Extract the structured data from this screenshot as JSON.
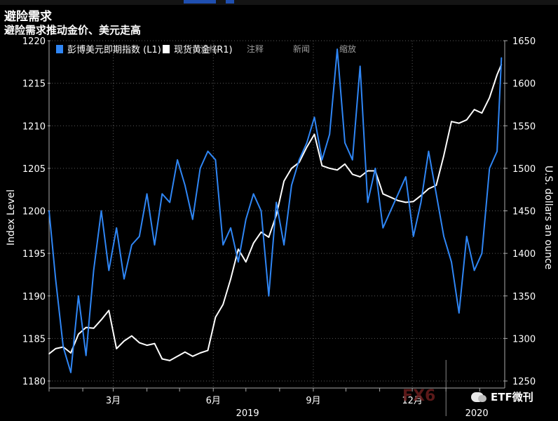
{
  "header": {
    "title": "避险需求",
    "subtitle": "避险需求推动金价、美元走高"
  },
  "toolbar": {
    "items": [
      "退格",
      "注释",
      "新闻",
      "缩放"
    ]
  },
  "watermark": {
    "fx_text": "FX6",
    "brand_text": "ETF微刊"
  },
  "colors": {
    "gold_series": "#ffffff",
    "dollar_series": "#2f86f5",
    "grid": "#5a5a5a",
    "background": "#000000"
  },
  "chart_data": {
    "type": "line",
    "title": "避险需求推动金价、美元走高",
    "x_tick_labels": [
      "3月",
      "6月",
      "9月",
      "12月"
    ],
    "x_year_labels": [
      "2019",
      "2020"
    ],
    "y_left": {
      "label": "Index Level",
      "range": [
        1180,
        1220
      ],
      "ticks": [
        1180,
        1185,
        1190,
        1195,
        1200,
        1205,
        1210,
        1215,
        1220
      ]
    },
    "y_right": {
      "label": "U.S. dollars an ounce",
      "range": [
        1250,
        1650
      ],
      "ticks": [
        1250,
        1300,
        1350,
        1400,
        1450,
        1500,
        1550,
        1600,
        1650
      ]
    },
    "legend": {
      "position": "top-left"
    },
    "series": [
      {
        "name": "现货黄金 (R1)",
        "axis": "right",
        "color": "#ffffff",
        "x": [
          "2019-01-01",
          "2019-01-07",
          "2019-01-14",
          "2019-01-21",
          "2019-01-28",
          "2019-02-04",
          "2019-02-11",
          "2019-02-18",
          "2019-02-25",
          "2019-03-04",
          "2019-03-11",
          "2019-03-18",
          "2019-03-25",
          "2019-04-01",
          "2019-04-08",
          "2019-04-15",
          "2019-04-22",
          "2019-04-29",
          "2019-05-06",
          "2019-05-13",
          "2019-05-20",
          "2019-05-27",
          "2019-06-03",
          "2019-06-10",
          "2019-06-17",
          "2019-06-24",
          "2019-07-01",
          "2019-07-08",
          "2019-07-15",
          "2019-07-22",
          "2019-07-29",
          "2019-08-05",
          "2019-08-12",
          "2019-08-19",
          "2019-08-26",
          "2019-09-02",
          "2019-09-09",
          "2019-09-16",
          "2019-09-23",
          "2019-09-30",
          "2019-10-07",
          "2019-10-14",
          "2019-10-21",
          "2019-10-28",
          "2019-11-04",
          "2019-11-11",
          "2019-11-18",
          "2019-11-25",
          "2019-12-02",
          "2019-12-09",
          "2019-12-16",
          "2019-12-23",
          "2019-12-30",
          "2020-01-06",
          "2020-01-13",
          "2020-01-20",
          "2020-01-27",
          "2020-02-03",
          "2020-02-10",
          "2020-02-17",
          "2020-02-21"
        ],
        "values": [
          1282,
          1288,
          1290,
          1283,
          1305,
          1313,
          1312,
          1322,
          1333,
          1288,
          1297,
          1303,
          1295,
          1292,
          1294,
          1276,
          1274,
          1279,
          1284,
          1279,
          1283,
          1286,
          1325,
          1340,
          1370,
          1405,
          1390,
          1412,
          1425,
          1419,
          1445,
          1485,
          1500,
          1507,
          1525,
          1540,
          1503,
          1500,
          1498,
          1505,
          1493,
          1490,
          1497,
          1497,
          1470,
          1466,
          1462,
          1460,
          1461,
          1468,
          1476,
          1480,
          1515,
          1555,
          1553,
          1557,
          1569,
          1565,
          1583,
          1610,
          1622
        ]
      },
      {
        "name": "彭博美元即期指数 (L1)",
        "axis": "left",
        "color": "#2f86f5",
        "x": [
          "2019-01-01",
          "2019-01-07",
          "2019-01-14",
          "2019-01-21",
          "2019-01-28",
          "2019-02-04",
          "2019-02-11",
          "2019-02-18",
          "2019-02-25",
          "2019-03-04",
          "2019-03-11",
          "2019-03-18",
          "2019-03-25",
          "2019-04-01",
          "2019-04-08",
          "2019-04-15",
          "2019-04-22",
          "2019-04-29",
          "2019-05-06",
          "2019-05-13",
          "2019-05-20",
          "2019-05-27",
          "2019-06-03",
          "2019-06-10",
          "2019-06-17",
          "2019-06-24",
          "2019-07-01",
          "2019-07-08",
          "2019-07-15",
          "2019-07-22",
          "2019-07-29",
          "2019-08-05",
          "2019-08-12",
          "2019-08-19",
          "2019-08-26",
          "2019-09-02",
          "2019-09-09",
          "2019-09-16",
          "2019-09-23",
          "2019-09-30",
          "2019-10-07",
          "2019-10-14",
          "2019-10-21",
          "2019-10-28",
          "2019-11-04",
          "2019-11-11",
          "2019-11-18",
          "2019-11-25",
          "2019-12-02",
          "2019-12-09",
          "2019-12-16",
          "2019-12-23",
          "2019-12-30",
          "2020-01-06",
          "2020-01-13",
          "2020-01-20",
          "2020-01-27",
          "2020-02-03",
          "2020-02-10",
          "2020-02-17",
          "2020-02-21"
        ],
        "values": [
          1200,
          1192,
          1184,
          1181,
          1190,
          1183,
          1193,
          1200,
          1193,
          1198,
          1192,
          1196,
          1197,
          1202,
          1196,
          1202,
          1201,
          1206,
          1203,
          1199,
          1205,
          1207,
          1206,
          1196,
          1198,
          1194,
          1199,
          1202,
          1200,
          1190,
          1201,
          1196,
          1203,
          1206,
          1208,
          1211,
          1206,
          1209,
          1219,
          1208,
          1206,
          1217,
          1201,
          1205,
          1198,
          1200,
          1202,
          1204,
          1197,
          1201,
          1207,
          1202,
          1197,
          1194,
          1188,
          1197,
          1193,
          1195,
          1205,
          1207,
          1218
        ]
      }
    ]
  }
}
